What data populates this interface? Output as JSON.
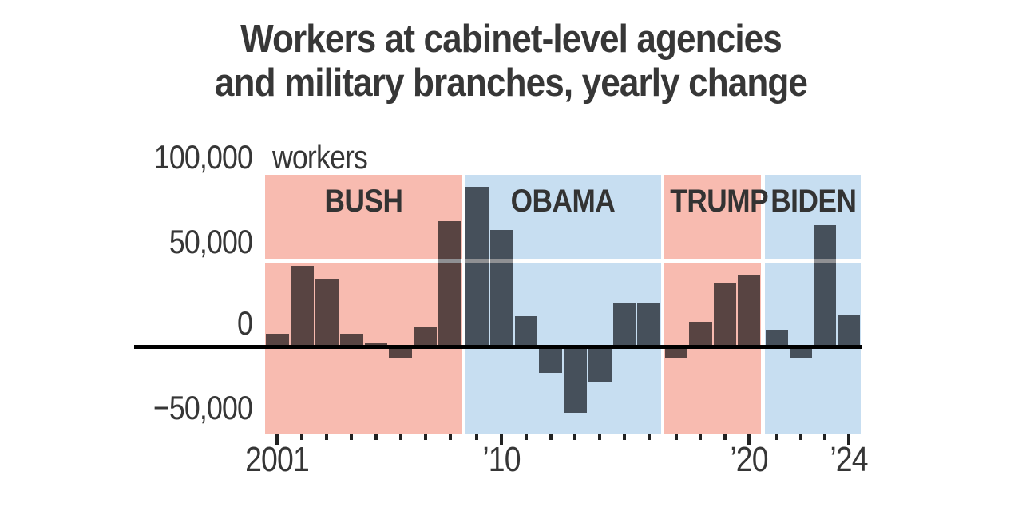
{
  "title": {
    "line1": "Workers at cabinet-level agencies",
    "line2": "and military branches, yearly change"
  },
  "y_axis": {
    "unit_label": "workers",
    "labels": [
      "100,000",
      "50,000",
      "0",
      "−50,000"
    ]
  },
  "x_axis": {
    "labels": [
      "2001",
      "’10",
      "’20",
      "’24"
    ],
    "years": [
      2001,
      2010,
      2020,
      2024
    ]
  },
  "colors": {
    "background": "#ffffff",
    "republican_band": "#f8bbb0",
    "democrat_band": "#c7def1",
    "bar": "#5a5c60",
    "title_text": "#373737",
    "axis_text": "#363636",
    "era_text": "#333333",
    "zero_line": "#000000",
    "tick": "#222222",
    "gridline": "#ffffff"
  },
  "chart_data": {
    "type": "bar",
    "title": "Workers at cabinet-level agencies and military branches, yearly change",
    "unit": "workers",
    "ylabel": "workers, yearly change",
    "ylim": [
      -50000,
      100000
    ],
    "gridline_values": [
      50000,
      0
    ],
    "x": [
      2001,
      2002,
      2003,
      2004,
      2005,
      2006,
      2007,
      2008,
      2009,
      2010,
      2011,
      2012,
      2013,
      2014,
      2015,
      2016,
      2017,
      2018,
      2019,
      2020,
      2021,
      2022,
      2023,
      2024
    ],
    "values": [
      8000,
      47000,
      40000,
      8000,
      3000,
      -6000,
      12000,
      73000,
      93000,
      68000,
      18000,
      -15000,
      -38000,
      -20000,
      26000,
      26000,
      -6000,
      15000,
      37000,
      42000,
      10000,
      -6000,
      71000,
      19000
    ],
    "eras": [
      {
        "label": "BUSH",
        "start_year": 2001,
        "end_year": 2008,
        "band_color": "#f8bbb0"
      },
      {
        "label": "OBAMA",
        "start_year": 2009,
        "end_year": 2016,
        "band_color": "#c7def1"
      },
      {
        "label": "TRUMP",
        "start_year": 2017,
        "end_year": 2020,
        "band_color": "#f8bbb0"
      },
      {
        "label": "BIDEN",
        "start_year": 2021,
        "end_year": 2024,
        "band_color": "#c7def1"
      }
    ],
    "major_tick_years": [
      2001,
      2010,
      2020,
      2024
    ],
    "legend_position": "none",
    "grid": "horizontal"
  }
}
